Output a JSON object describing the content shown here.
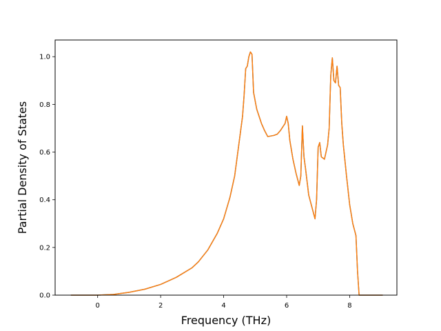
{
  "chart_data": {
    "type": "line",
    "title": "",
    "xlabel": "Frequency (THz)",
    "ylabel": "Partial Density of States",
    "xlim": [
      -1.35,
      9.5
    ],
    "ylim": [
      0.0,
      1.07
    ],
    "xticks": [
      0,
      2,
      4,
      6,
      8
    ],
    "xtick_labels": [
      "0",
      "2",
      "4",
      "6",
      "8"
    ],
    "yticks": [
      0.0,
      0.2,
      0.4,
      0.6,
      0.8,
      1.0
    ],
    "ytick_labels": [
      "0.0",
      "0.2",
      "0.4",
      "0.6",
      "0.8",
      "1.0"
    ],
    "grid": false,
    "series": [
      {
        "color": "#1f77b4",
        "x": [
          -0.85,
          0.0,
          0.5,
          1.0,
          1.5,
          2.0,
          2.5,
          3.0,
          3.2,
          3.5,
          3.8,
          4.0,
          4.2,
          4.35,
          4.5,
          4.6,
          4.65,
          4.7,
          4.75,
          4.8,
          4.85,
          4.9,
          4.95,
          5.05,
          5.2,
          5.3,
          5.4,
          5.6,
          5.7,
          5.8,
          5.9,
          5.95,
          6.0,
          6.05,
          6.1,
          6.2,
          6.3,
          6.4,
          6.45,
          6.5,
          6.55,
          6.6,
          6.7,
          6.8,
          6.9,
          6.95,
          7.0,
          7.05,
          7.1,
          7.2,
          7.3,
          7.35,
          7.4,
          7.45,
          7.5,
          7.55,
          7.6,
          7.65,
          7.7,
          7.75,
          7.8,
          7.9,
          8.0,
          8.1,
          8.2,
          8.25,
          8.3,
          9.05
        ],
        "y": [
          0.0,
          0.0,
          0.003,
          0.012,
          0.025,
          0.045,
          0.075,
          0.115,
          0.14,
          0.19,
          0.26,
          0.32,
          0.41,
          0.5,
          0.65,
          0.75,
          0.84,
          0.95,
          0.96,
          1.0,
          1.02,
          1.01,
          0.85,
          0.78,
          0.72,
          0.69,
          0.665,
          0.67,
          0.675,
          0.69,
          0.71,
          0.72,
          0.75,
          0.72,
          0.65,
          0.57,
          0.51,
          0.46,
          0.5,
          0.71,
          0.58,
          0.53,
          0.42,
          0.37,
          0.32,
          0.4,
          0.62,
          0.64,
          0.58,
          0.57,
          0.63,
          0.7,
          0.92,
          0.995,
          0.9,
          0.89,
          0.96,
          0.88,
          0.87,
          0.72,
          0.63,
          0.5,
          0.38,
          0.3,
          0.25,
          0.1,
          0.0,
          0.0
        ]
      },
      {
        "color": "#ff7f0e",
        "x": [
          -0.85,
          0.0,
          0.5,
          1.0,
          1.5,
          2.0,
          2.5,
          3.0,
          3.2,
          3.5,
          3.8,
          4.0,
          4.2,
          4.35,
          4.5,
          4.6,
          4.65,
          4.7,
          4.75,
          4.8,
          4.85,
          4.9,
          4.95,
          5.05,
          5.2,
          5.3,
          5.4,
          5.6,
          5.7,
          5.8,
          5.9,
          5.95,
          6.0,
          6.05,
          6.1,
          6.2,
          6.3,
          6.4,
          6.45,
          6.5,
          6.55,
          6.6,
          6.7,
          6.8,
          6.9,
          6.95,
          7.0,
          7.05,
          7.1,
          7.2,
          7.3,
          7.35,
          7.4,
          7.45,
          7.5,
          7.55,
          7.6,
          7.65,
          7.7,
          7.75,
          7.8,
          7.9,
          8.0,
          8.1,
          8.2,
          8.25,
          8.3,
          9.05
        ],
        "y": [
          0.0,
          0.0,
          0.003,
          0.012,
          0.025,
          0.045,
          0.075,
          0.115,
          0.14,
          0.19,
          0.26,
          0.32,
          0.41,
          0.5,
          0.65,
          0.75,
          0.84,
          0.95,
          0.96,
          1.0,
          1.02,
          1.01,
          0.85,
          0.78,
          0.72,
          0.69,
          0.665,
          0.67,
          0.675,
          0.69,
          0.71,
          0.72,
          0.75,
          0.72,
          0.65,
          0.57,
          0.51,
          0.46,
          0.5,
          0.71,
          0.58,
          0.53,
          0.42,
          0.37,
          0.32,
          0.4,
          0.62,
          0.64,
          0.58,
          0.57,
          0.63,
          0.7,
          0.92,
          0.995,
          0.9,
          0.89,
          0.96,
          0.88,
          0.87,
          0.72,
          0.63,
          0.5,
          0.38,
          0.3,
          0.25,
          0.1,
          0.0,
          0.0
        ]
      }
    ]
  }
}
